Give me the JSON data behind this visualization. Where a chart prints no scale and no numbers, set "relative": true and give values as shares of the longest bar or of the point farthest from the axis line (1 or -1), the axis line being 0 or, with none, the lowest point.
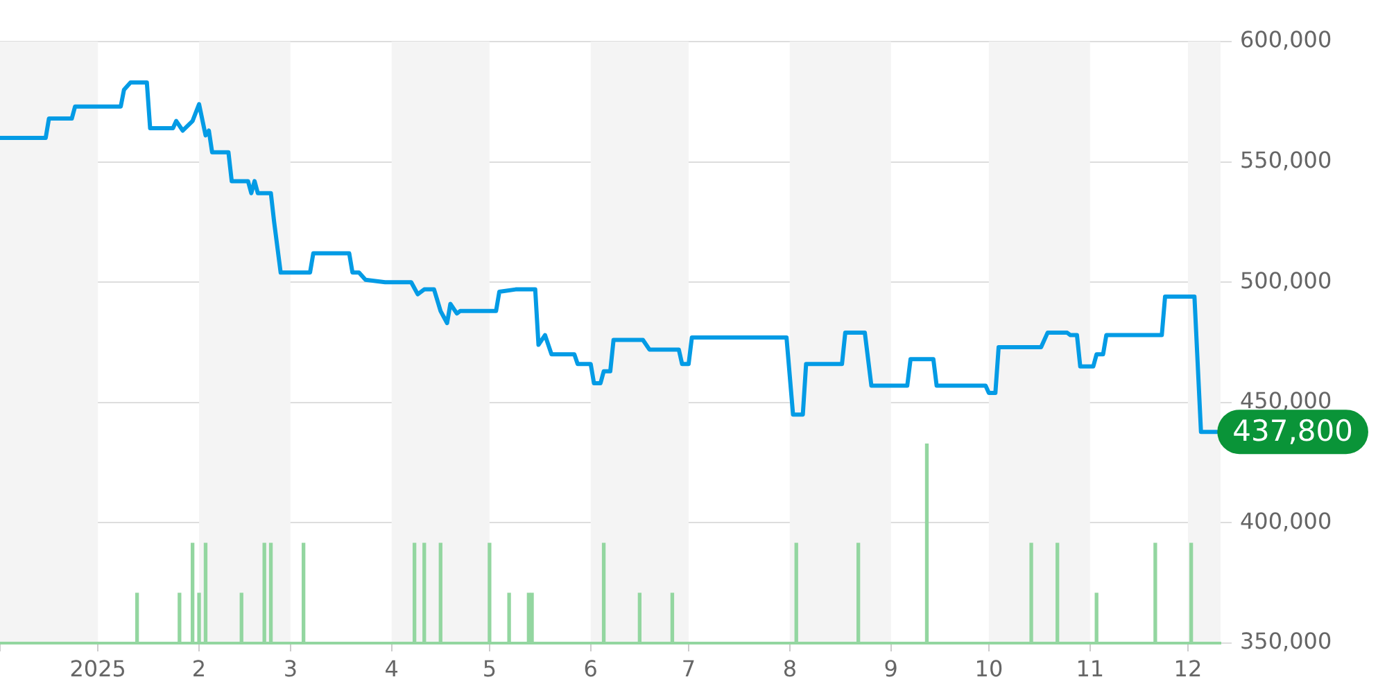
{
  "chart_data": [
    {
      "type": "line",
      "x": [
        "2024-12-02",
        "2024-12-16",
        "2024-12-17",
        "2024-12-24",
        "2024-12-25",
        "2025-01-08",
        "2025-01-09",
        "2025-01-11",
        "2025-01-16",
        "2025-01-17",
        "2025-01-24",
        "2025-01-25",
        "2025-01-27",
        "2025-01-30",
        "2025-02-01",
        "2025-02-03",
        "2025-02-04",
        "2025-02-05",
        "2025-02-10",
        "2025-02-11",
        "2025-02-16",
        "2025-02-17",
        "2025-02-18",
        "2025-02-19",
        "2025-02-23",
        "2025-02-24",
        "2025-02-26",
        "2025-03-07",
        "2025-03-08",
        "2025-03-19",
        "2025-03-20",
        "2025-03-22",
        "2025-03-24",
        "2025-03-30",
        "2025-04-07",
        "2025-04-09",
        "2025-04-11",
        "2025-04-14",
        "2025-04-16",
        "2025-04-18",
        "2025-04-19",
        "2025-04-21",
        "2025-04-22",
        "2025-05-03",
        "2025-05-04",
        "2025-05-09",
        "2025-05-15",
        "2025-05-16",
        "2025-05-18",
        "2025-05-20",
        "2025-05-27",
        "2025-05-28",
        "2025-06-01",
        "2025-06-02",
        "2025-06-04",
        "2025-06-05",
        "2025-06-07",
        "2025-06-08",
        "2025-06-17",
        "2025-06-19",
        "2025-06-28",
        "2025-06-29",
        "2025-07-01",
        "2025-07-02",
        "2025-07-31",
        "2025-08-02",
        "2025-08-05",
        "2025-08-06",
        "2025-08-17",
        "2025-08-18",
        "2025-08-24",
        "2025-08-26",
        "2025-09-06",
        "2025-09-07",
        "2025-09-14",
        "2025-09-15",
        "2025-09-30",
        "2025-10-01",
        "2025-10-03",
        "2025-10-04",
        "2025-10-17",
        "2025-10-19",
        "2025-10-25",
        "2025-10-26",
        "2025-10-28",
        "2025-10-29",
        "2025-11-02",
        "2025-11-03",
        "2025-11-05",
        "2025-11-06",
        "2025-11-23",
        "2025-11-24",
        "2025-12-03",
        "2025-12-05",
        "2025-12-10"
      ],
      "series": [
        {
          "color": "#039be5",
          "values": [
            560000,
            560000,
            568000,
            568000,
            573000,
            573000,
            580000,
            583000,
            583000,
            564000,
            564000,
            567000,
            563000,
            567000,
            574000,
            561000,
            563000,
            554000,
            554000,
            542000,
            542000,
            537000,
            542000,
            537000,
            537000,
            525000,
            504000,
            504000,
            512000,
            512000,
            504000,
            504000,
            501000,
            500000,
            500000,
            495000,
            497000,
            497000,
            488000,
            483000,
            491000,
            487000,
            488000,
            488000,
            496000,
            497000,
            497000,
            474000,
            478000,
            470000,
            470000,
            466000,
            466000,
            458000,
            458000,
            463000,
            463000,
            476000,
            476000,
            472000,
            472000,
            466000,
            466000,
            477000,
            477000,
            445000,
            445000,
            466000,
            466000,
            479000,
            479000,
            457000,
            457000,
            468000,
            468000,
            457000,
            457000,
            454000,
            454000,
            473000,
            473000,
            479000,
            479000,
            478000,
            478000,
            465000,
            465000,
            470000,
            470000,
            478000,
            478000,
            494000,
            494000,
            437800,
            437800
          ]
        }
      ],
      "xlim": [
        "2024-12-02",
        "2025-12-11"
      ],
      "xticks": [
        {
          "value": "2025-01-01",
          "label": "2025"
        },
        {
          "value": "2025-02-01",
          "label": "2"
        },
        {
          "value": "2025-03-01",
          "label": "3"
        },
        {
          "value": "2025-04-01",
          "label": "4"
        },
        {
          "value": "2025-05-01",
          "label": "5"
        },
        {
          "value": "2025-06-01",
          "label": "6"
        },
        {
          "value": "2025-07-01",
          "label": "7"
        },
        {
          "value": "2025-08-01",
          "label": "8"
        },
        {
          "value": "2025-09-01",
          "label": "9"
        },
        {
          "value": "2025-10-01",
          "label": "10"
        },
        {
          "value": "2025-11-01",
          "label": "11"
        },
        {
          "value": "2025-12-01",
          "label": "12"
        }
      ],
      "ylim": [
        350000,
        600000
      ],
      "yticks": [
        {
          "value": 350000,
          "label": "350,000"
        },
        {
          "value": 400000,
          "label": "400,000"
        },
        {
          "value": 450000,
          "label": "450,000"
        },
        {
          "value": 500000,
          "label": "500,000"
        },
        {
          "value": 550000,
          "label": "550,000"
        },
        {
          "value": 600000,
          "label": "600,000"
        }
      ],
      "bands": [
        {
          "axis": "x",
          "from": "2024-12-02",
          "to": "2025-01-01",
          "color": "#f4f4f4"
        },
        {
          "axis": "x",
          "from": "2025-02-01",
          "to": "2025-03-01",
          "color": "#f4f4f4"
        },
        {
          "axis": "x",
          "from": "2025-04-01",
          "to": "2025-05-01",
          "color": "#f4f4f4"
        },
        {
          "axis": "x",
          "from": "2025-06-01",
          "to": "2025-07-01",
          "color": "#f4f4f4"
        },
        {
          "axis": "x",
          "from": "2025-08-01",
          "to": "2025-09-01",
          "color": "#f4f4f4"
        },
        {
          "axis": "x",
          "from": "2025-10-01",
          "to": "2025-11-01",
          "color": "#f4f4f4"
        },
        {
          "axis": "x",
          "from": "2025-12-01",
          "to": "2025-12-11",
          "color": "#f4f4f4"
        }
      ],
      "annotations": [
        {
          "text": "437,800",
          "x": "2025-12-10",
          "y": 437800
        }
      ],
      "grid": "y",
      "legend": false,
      "marker": "none",
      "line_style": "solid"
    },
    {
      "type": "bar",
      "relative": true,
      "color": "#93d6a0",
      "xlim": [
        "2024-12-02",
        "2025-12-11"
      ],
      "x": [
        "2025-01-13",
        "2025-01-26",
        "2025-01-30",
        "2025-02-01",
        "2025-02-03",
        "2025-02-14",
        "2025-02-21",
        "2025-02-23",
        "2025-03-05",
        "2025-04-08",
        "2025-04-11",
        "2025-04-16",
        "2025-05-01",
        "2025-05-07",
        "2025-05-13",
        "2025-05-14",
        "2025-06-05",
        "2025-06-16",
        "2025-06-26",
        "2025-08-03",
        "2025-08-22",
        "2025-09-12",
        "2025-10-14",
        "2025-10-22",
        "2025-11-03",
        "2025-11-21",
        "2025-12-02"
      ],
      "values": [
        0.25,
        0.25,
        0.5,
        0.25,
        0.5,
        0.25,
        0.5,
        0.5,
        0.5,
        0.5,
        0.5,
        0.5,
        0.5,
        0.25,
        0.25,
        0.25,
        0.5,
        0.25,
        0.25,
        0.5,
        0.5,
        1,
        0.5,
        0.5,
        0.25,
        0.5,
        0.5
      ]
    }
  ]
}
